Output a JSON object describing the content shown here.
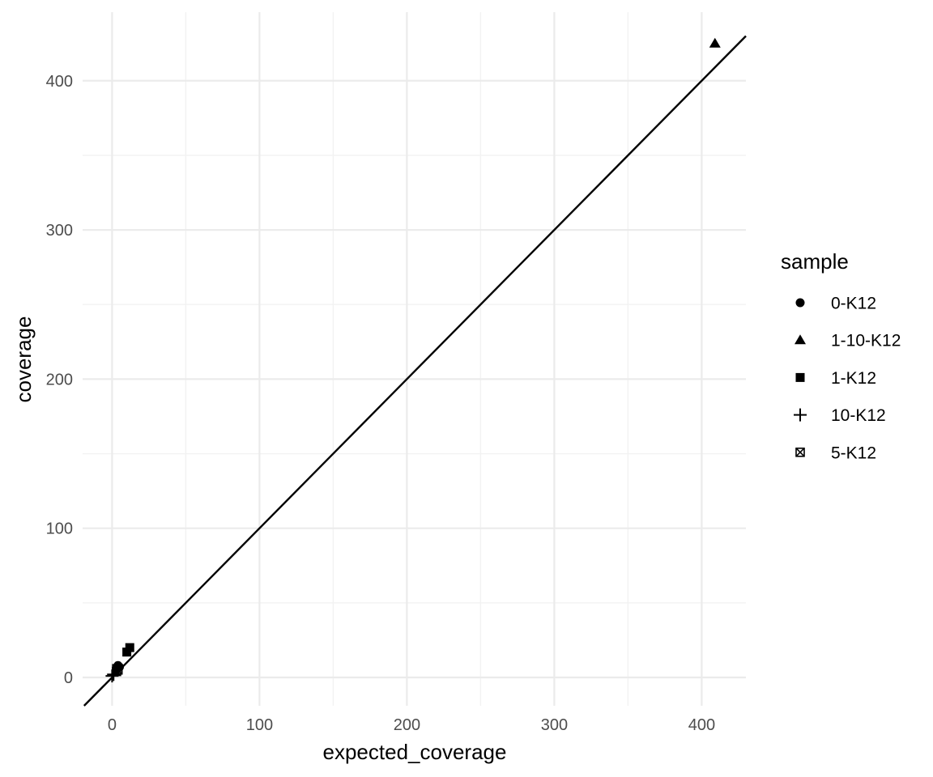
{
  "chart_data": {
    "type": "scatter",
    "title": "",
    "xlabel": "expected_coverage",
    "ylabel": "coverage",
    "xlim": [
      -20,
      430
    ],
    "ylim": [
      -19,
      446
    ],
    "x_ticks": [
      0,
      100,
      200,
      300,
      400
    ],
    "y_ticks": [
      0,
      100,
      200,
      300,
      400
    ],
    "x_tick_labels": [
      "0",
      "100",
      "200",
      "300",
      "400"
    ],
    "y_tick_labels": [
      "0",
      "100",
      "200",
      "300",
      "400"
    ],
    "grid": true,
    "reference_line": {
      "slope": 1,
      "intercept": 0,
      "color": "#000000"
    },
    "legend": {
      "title": "sample",
      "position": "right",
      "entries": [
        {
          "label": "0-K12",
          "shape": "circle"
        },
        {
          "label": "1-10-K12",
          "shape": "triangle"
        },
        {
          "label": "1-K12",
          "shape": "square"
        },
        {
          "label": "10-K12",
          "shape": "plus"
        },
        {
          "label": "5-K12",
          "shape": "square-cross"
        }
      ]
    },
    "series": [
      {
        "name": "0-K12",
        "shape": "circle",
        "points": [
          [
            4,
            8
          ],
          [
            3,
            5
          ],
          [
            5,
            7
          ]
        ]
      },
      {
        "name": "1-10-K12",
        "shape": "triangle",
        "points": [
          [
            409,
            425
          ]
        ]
      },
      {
        "name": "1-K12",
        "shape": "square",
        "points": [
          [
            12,
            20
          ],
          [
            10,
            17
          ],
          [
            3,
            6
          ]
        ]
      },
      {
        "name": "10-K12",
        "shape": "plus",
        "points": [
          [
            0,
            1
          ],
          [
            1,
            2
          ]
        ]
      },
      {
        "name": "5-K12",
        "shape": "square-cross",
        "points": [
          [
            3,
            4
          ],
          [
            4,
            5
          ]
        ]
      }
    ]
  }
}
